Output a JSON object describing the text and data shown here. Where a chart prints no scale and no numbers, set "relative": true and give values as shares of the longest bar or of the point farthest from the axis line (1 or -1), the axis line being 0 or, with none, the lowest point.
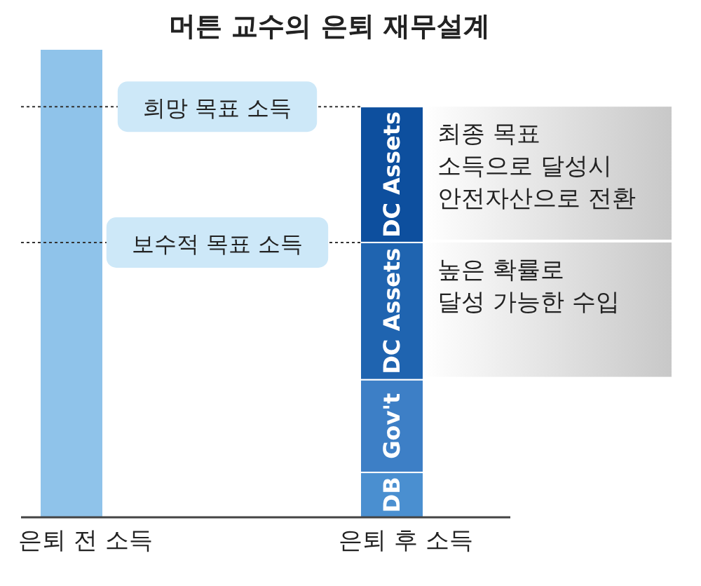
{
  "chart_data": {
    "type": "bar",
    "title": "머튼 교수의 은퇴 재무설계",
    "relative": true,
    "stacked": true,
    "categories": [
      "은퇴 전 소득",
      "은퇴 후 소득"
    ],
    "series": [
      {
        "color": "#8fc3ea",
        "values": [
          1,
          null
        ]
      },
      {
        "name": "DB",
        "color": "#4a8fd0",
        "values": [
          null,
          0.096
        ]
      },
      {
        "name": "Gov't",
        "color": "#3d7fc6",
        "values": [
          null,
          0.198
        ]
      },
      {
        "name": "DC Assets",
        "color": "#1f64b0",
        "values": [
          null,
          0.293
        ]
      },
      {
        "name": "DC Assets",
        "color": "#0d4f9e",
        "values": [
          null,
          0.29
        ]
      }
    ],
    "ref_lines": [
      {
        "axis": "y",
        "value": 0.877,
        "label": "희망 목표 소득",
        "line_style": "dotted",
        "color": "#333333"
      },
      {
        "axis": "y",
        "value": 0.587,
        "label": "보수적 목표 소득",
        "line_style": "dotted",
        "color": "#333333"
      }
    ],
    "annotations": [
      "최종 목표\n소득으로 달성시\n안전자산으로 전환",
      "높은 확률로\n달성 가능한 수입"
    ]
  }
}
